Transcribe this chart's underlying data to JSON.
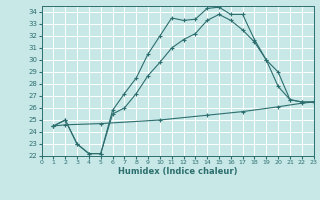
{
  "xlabel": "Humidex (Indice chaleur)",
  "bg_color": "#c8e8e8",
  "grid_color": "#ffffff",
  "line_color": "#2d6e6e",
  "xlim": [
    0,
    23
  ],
  "ylim": [
    22,
    34.5
  ],
  "yticks": [
    22,
    23,
    24,
    25,
    26,
    27,
    28,
    29,
    30,
    31,
    32,
    33,
    34
  ],
  "xticks": [
    0,
    1,
    2,
    3,
    4,
    5,
    6,
    7,
    8,
    9,
    10,
    11,
    12,
    13,
    14,
    15,
    16,
    17,
    18,
    19,
    20,
    21,
    22,
    23
  ],
  "curve1_x": [
    1,
    2,
    3,
    4,
    5,
    6,
    7,
    8,
    9,
    10,
    11,
    12,
    13,
    14,
    15,
    16,
    17,
    18,
    19,
    20,
    21,
    22,
    23
  ],
  "curve1_y": [
    24.5,
    25.0,
    23.0,
    22.2,
    22.2,
    25.8,
    27.2,
    28.5,
    30.5,
    32.0,
    33.5,
    33.3,
    33.4,
    34.3,
    34.4,
    33.8,
    33.8,
    31.7,
    30.0,
    29.0,
    26.7,
    26.5,
    26.5
  ],
  "curve2_x": [
    1,
    2,
    3,
    4,
    5,
    6,
    7,
    8,
    9,
    10,
    11,
    12,
    13,
    14,
    15,
    16,
    17,
    18,
    19,
    20,
    21,
    22,
    23
  ],
  "curve2_y": [
    24.5,
    25.0,
    23.0,
    22.2,
    22.2,
    25.5,
    26.0,
    27.2,
    28.7,
    29.8,
    31.0,
    31.7,
    32.2,
    33.3,
    33.8,
    33.3,
    32.5,
    31.5,
    30.0,
    27.8,
    26.7,
    26.5,
    26.5
  ],
  "curve3_x": [
    1,
    2,
    5,
    10,
    14,
    17,
    20,
    22,
    23
  ],
  "curve3_y": [
    24.5,
    24.6,
    24.7,
    25.0,
    25.4,
    25.7,
    26.1,
    26.4,
    26.5
  ]
}
